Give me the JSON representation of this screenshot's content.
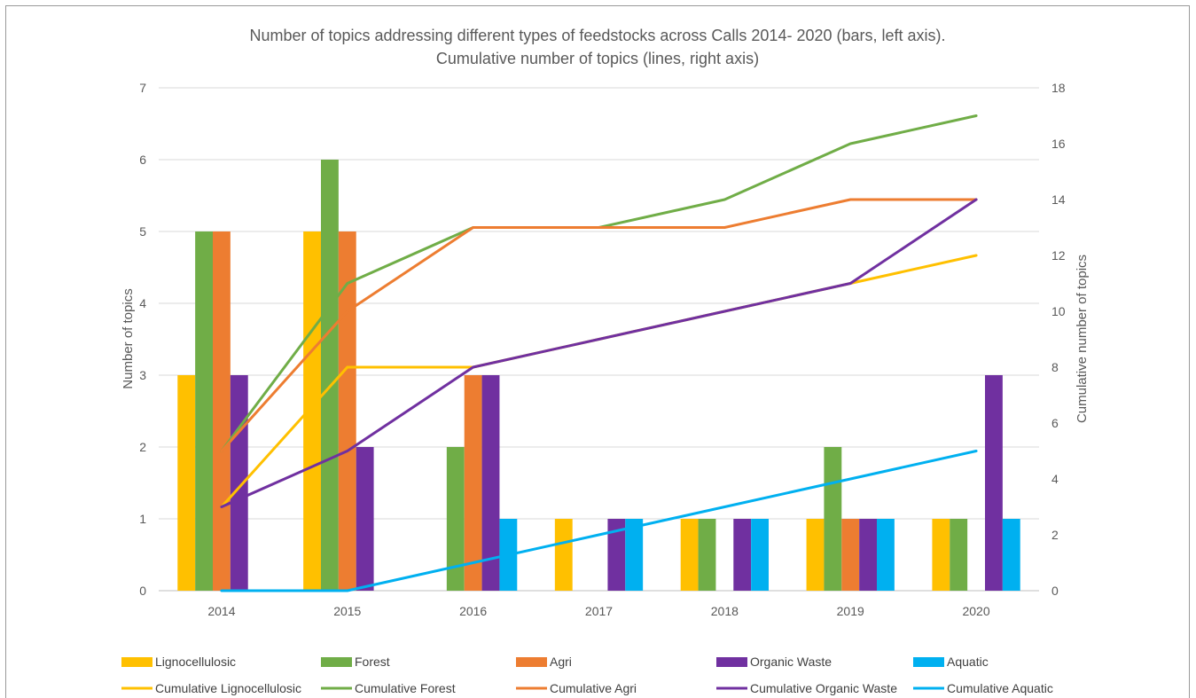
{
  "chart_data": {
    "type": "bar",
    "title": [
      "Number of topics addressing different types of feedstocks across Calls 2014- 2020 (bars, left axis).",
      "Cumulative number of topics (lines, right axis)"
    ],
    "categories": [
      "2014",
      "2015",
      "2016",
      "2017",
      "2018",
      "2019",
      "2020"
    ],
    "ylabel": "Number of topics",
    "y2label": "Cumulative number of topics",
    "ylim": [
      0,
      7
    ],
    "y2lim": [
      0,
      18
    ],
    "yticks": [
      "0",
      "1",
      "2",
      "3",
      "4",
      "5",
      "6",
      "7"
    ],
    "y2ticks": [
      "0",
      "2",
      "4",
      "6",
      "8",
      "10",
      "12",
      "14",
      "16",
      "18"
    ],
    "grid": true,
    "legend_position": "bottom",
    "bar_series": [
      {
        "name": "Lignocellulosic",
        "color": "#FFC000",
        "values": [
          3,
          5,
          0,
          1,
          1,
          1,
          1
        ]
      },
      {
        "name": "Forest",
        "color": "#70AD47",
        "values": [
          5,
          6,
          2,
          0,
          1,
          2,
          1
        ]
      },
      {
        "name": "Agri",
        "color": "#ED7D31",
        "values": [
          5,
          5,
          3,
          0,
          0,
          1,
          0
        ]
      },
      {
        "name": "Organic Waste",
        "color": "#7030A0",
        "values": [
          3,
          2,
          3,
          1,
          1,
          1,
          3
        ]
      },
      {
        "name": "Aquatic",
        "color": "#00B0F0",
        "values": [
          0,
          0,
          1,
          1,
          1,
          1,
          1
        ]
      }
    ],
    "line_series": [
      {
        "name": "Cumulative Lignocellulosic",
        "color": "#FFC000",
        "values": [
          3,
          8,
          8,
          9,
          10,
          11,
          12
        ]
      },
      {
        "name": "Cumulative Forest",
        "color": "#70AD47",
        "values": [
          5,
          11,
          13,
          13,
          14,
          16,
          17
        ]
      },
      {
        "name": "Cumulative Agri",
        "color": "#ED7D31",
        "values": [
          5,
          10,
          13,
          13,
          13,
          14,
          14
        ]
      },
      {
        "name": "Cumulative Organic Waste",
        "color": "#7030A0",
        "values": [
          3,
          5,
          8,
          9,
          10,
          11,
          14
        ]
      },
      {
        "name": "Cumulative Aquatic",
        "color": "#00B0F0",
        "values": [
          0,
          0,
          1,
          2,
          3,
          4,
          5
        ]
      }
    ]
  }
}
